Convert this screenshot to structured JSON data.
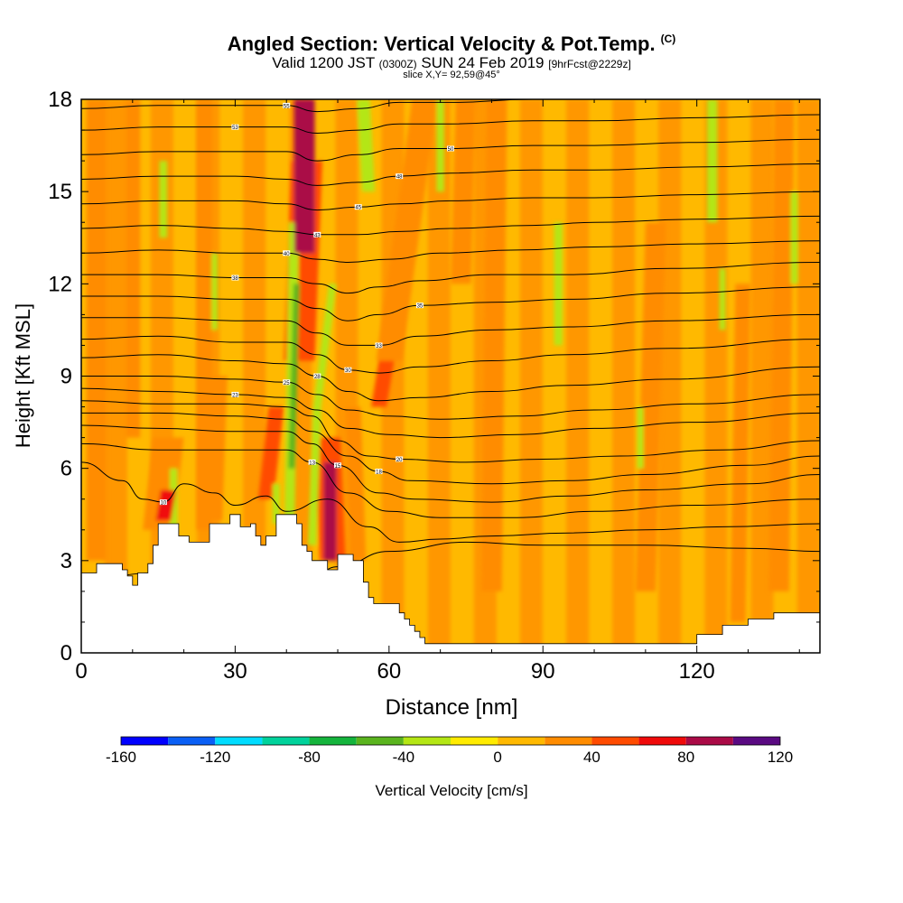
{
  "title": {
    "main": "Angled Section: Vertical Velocity & Pot.Temp.",
    "mark": "(C)",
    "valid_pre": "Valid 1200 JST",
    "valid_z": "(0300Z)",
    "valid_date": "SUN 24 Feb 2019",
    "fcst": "[9hrFcst@2229z]",
    "slice": "slice X,Y= 92,59@45°"
  },
  "colors": {
    "bins": [
      "#0000ff",
      "#0a5ff5",
      "#00dcff",
      "#00d29b",
      "#14b43c",
      "#5ab41e",
      "#b4e614",
      "#ffeb00",
      "#ffb900",
      "#ff8c00",
      "#ff4b00",
      "#f00a0a",
      "#aa0a46",
      "#5a0a82"
    ],
    "terrain": "#ffffff",
    "contour": "#000000"
  },
  "chart_data": {
    "type": "heatmap",
    "xlabel": "Distance [nm]",
    "ylabel": "Height [Kft MSL]",
    "xlim": [
      0,
      144
    ],
    "ylim": [
      0,
      18
    ],
    "xticks": [
      0,
      30,
      60,
      90,
      120
    ],
    "yticks": [
      0,
      3,
      6,
      9,
      12,
      15,
      18
    ],
    "colorbar": {
      "label": "Vertical Velocity [cm/s]",
      "levels": [
        -160,
        -140,
        -120,
        -100,
        -80,
        -60,
        -40,
        -20,
        0,
        20,
        40,
        60,
        80,
        100,
        120
      ],
      "tick_labels": [
        -160,
        -120,
        -80,
        -40,
        0,
        40,
        80,
        120
      ]
    },
    "terrain_height_kft": {
      "x": [
        0,
        3,
        5,
        8,
        9,
        10,
        11,
        12,
        13,
        14,
        15,
        16,
        17,
        19,
        21,
        23,
        25,
        27,
        29,
        31,
        33,
        34,
        35,
        36,
        38,
        40,
        42,
        43,
        44,
        45,
        46,
        47,
        48,
        49,
        50,
        52,
        53,
        55,
        56,
        57,
        58,
        60,
        62,
        63,
        64,
        65,
        66,
        67,
        68,
        70,
        72,
        75,
        80,
        85,
        100,
        110,
        115,
        120,
        125,
        130,
        135,
        144
      ],
      "h": [
        2.6,
        2.9,
        2.9,
        2.7,
        2.5,
        2.2,
        2.6,
        2.6,
        2.9,
        3.5,
        4.2,
        4.2,
        4.2,
        3.8,
        3.6,
        3.6,
        4.2,
        4.2,
        4.5,
        4.1,
        4.2,
        3.8,
        3.5,
        3.8,
        4.5,
        4.5,
        4.2,
        3.5,
        3.3,
        3.0,
        3.0,
        3.0,
        2.7,
        2.7,
        3.2,
        3.2,
        3.0,
        2.3,
        1.8,
        1.6,
        1.6,
        1.6,
        1.3,
        1.1,
        0.9,
        0.7,
        0.5,
        0.3,
        0.3,
        0.3,
        0.3,
        0.3,
        0.3,
        0.3,
        0.3,
        0.3,
        0.3,
        0.6,
        0.9,
        1.1,
        1.3,
        1.3
      ]
    },
    "theta_contours": [
      {
        "x": [
          0,
          15,
          30,
          40,
          45,
          50,
          60,
          75,
          90,
          110,
          130,
          144
        ],
        "y": [
          2.4,
          2.6,
          2.5,
          2.4,
          2.5,
          2.8,
          3.3,
          3.6,
          3.5,
          3.5,
          3.4,
          3.3
        ],
        "label": "5"
      },
      {
        "x": [
          0,
          8,
          12,
          16,
          20,
          26,
          30,
          36,
          40,
          48,
          56,
          62,
          70,
          80,
          95,
          110,
          125,
          144
        ],
        "y": [
          6.2,
          5.6,
          5.0,
          4.9,
          5.5,
          5.2,
          4.8,
          5.1,
          4.6,
          5.0,
          4.1,
          3.6,
          3.7,
          3.8,
          3.9,
          4.0,
          4.1,
          4.2
        ],
        "label": "10"
      },
      {
        "x": [
          0,
          15,
          30,
          40,
          45,
          52,
          60,
          70,
          85,
          100,
          120,
          144
        ],
        "y": [
          6.8,
          6.6,
          6.6,
          6.6,
          6.2,
          5.2,
          4.6,
          4.4,
          4.4,
          4.6,
          4.8,
          5.0
        ],
        "label": "13"
      },
      {
        "x": [
          0,
          15,
          30,
          40,
          45,
          50,
          58,
          65,
          80,
          95,
          110,
          130,
          144
        ],
        "y": [
          7.4,
          7.3,
          7.2,
          7.2,
          6.8,
          6.1,
          5.2,
          5.0,
          4.9,
          5.1,
          5.3,
          5.5,
          5.8
        ],
        "label": "15"
      },
      {
        "x": [
          0,
          15,
          30,
          40,
          45,
          52,
          58,
          64,
          80,
          95,
          110,
          130,
          144
        ],
        "y": [
          7.8,
          7.8,
          7.7,
          7.6,
          7.2,
          6.4,
          5.9,
          5.6,
          5.5,
          5.6,
          5.8,
          6.1,
          6.4
        ],
        "label": "18"
      },
      {
        "x": [
          0,
          15,
          30,
          40,
          45,
          50,
          56,
          62,
          75,
          90,
          105,
          125,
          144
        ],
        "y": [
          8.2,
          8.1,
          8.1,
          8.0,
          7.7,
          6.9,
          6.4,
          6.3,
          6.2,
          6.3,
          6.4,
          6.6,
          6.9
        ],
        "label": "20"
      },
      {
        "x": [
          0,
          15,
          30,
          40,
          46,
          52,
          60,
          70,
          85,
          100,
          120,
          144
        ],
        "y": [
          8.6,
          8.5,
          8.4,
          8.3,
          7.9,
          7.3,
          7.1,
          7.0,
          7.1,
          7.3,
          7.5,
          7.8
        ],
        "label": "23"
      },
      {
        "x": [
          0,
          15,
          30,
          40,
          46,
          52,
          60,
          70,
          85,
          100,
          120,
          144
        ],
        "y": [
          9.0,
          9.0,
          8.9,
          8.8,
          8.4,
          7.9,
          7.7,
          7.6,
          7.7,
          7.9,
          8.1,
          8.4
        ],
        "label": "25"
      },
      {
        "x": [
          0,
          15,
          30,
          40,
          46,
          52,
          58,
          66,
          80,
          95,
          115,
          144
        ],
        "y": [
          9.6,
          9.7,
          9.5,
          9.4,
          9.0,
          8.5,
          8.2,
          8.3,
          8.5,
          8.7,
          8.9,
          9.3
        ],
        "label": "28"
      },
      {
        "x": [
          0,
          15,
          30,
          40,
          46,
          52,
          58,
          66,
          80,
          95,
          115,
          144
        ],
        "y": [
          10.2,
          10.3,
          10.1,
          10.1,
          9.7,
          9.2,
          9.1,
          9.3,
          9.5,
          9.7,
          9.9,
          10.2
        ],
        "label": "30"
      },
      {
        "x": [
          0,
          15,
          30,
          40,
          46,
          52,
          58,
          66,
          80,
          95,
          115,
          144
        ],
        "y": [
          10.9,
          10.9,
          10.8,
          10.8,
          10.4,
          10.0,
          10.0,
          10.3,
          10.5,
          10.6,
          10.8,
          11.0
        ],
        "label": "33"
      },
      {
        "x": [
          0,
          15,
          30,
          40,
          46,
          52,
          58,
          66,
          80,
          95,
          115,
          144
        ],
        "y": [
          11.6,
          11.6,
          11.5,
          11.5,
          11.2,
          10.8,
          11.0,
          11.3,
          11.4,
          11.5,
          11.7,
          11.9
        ],
        "label": "35"
      },
      {
        "x": [
          0,
          15,
          30,
          40,
          46,
          52,
          58,
          66,
          80,
          95,
          115,
          144
        ],
        "y": [
          12.3,
          12.3,
          12.2,
          12.2,
          12.0,
          11.7,
          11.9,
          12.1,
          12.3,
          12.3,
          12.5,
          12.7
        ],
        "label": "38"
      },
      {
        "x": [
          0,
          15,
          30,
          40,
          46,
          52,
          60,
          70,
          85,
          100,
          120,
          144
        ],
        "y": [
          13.0,
          13.1,
          13.0,
          13.0,
          12.8,
          12.7,
          12.8,
          13.0,
          13.1,
          13.2,
          13.3,
          13.4
        ],
        "label": "40"
      },
      {
        "x": [
          0,
          15,
          30,
          40,
          46,
          54,
          62,
          72,
          88,
          100,
          120,
          144
        ],
        "y": [
          13.8,
          13.9,
          13.8,
          13.7,
          13.6,
          13.6,
          13.7,
          13.8,
          13.9,
          14.0,
          14.1,
          14.2
        ],
        "label": "43"
      },
      {
        "x": [
          0,
          15,
          30,
          40,
          46,
          54,
          62,
          72,
          88,
          100,
          120,
          144
        ],
        "y": [
          14.6,
          14.7,
          14.7,
          14.6,
          14.4,
          14.5,
          14.6,
          14.7,
          14.8,
          14.8,
          14.9,
          15.0
        ],
        "label": "45"
      },
      {
        "x": [
          0,
          15,
          30,
          40,
          46,
          54,
          62,
          72,
          88,
          100,
          120,
          144
        ],
        "y": [
          15.4,
          15.5,
          15.5,
          15.4,
          15.2,
          15.3,
          15.5,
          15.6,
          15.7,
          15.7,
          15.8,
          15.9
        ],
        "label": "48"
      },
      {
        "x": [
          0,
          15,
          30,
          40,
          46,
          54,
          62,
          72,
          88,
          100,
          120,
          144
        ],
        "y": [
          16.2,
          16.3,
          16.3,
          16.3,
          16.0,
          16.2,
          16.4,
          16.4,
          16.5,
          16.5,
          16.6,
          16.7
        ],
        "label": "50"
      },
      {
        "x": [
          0,
          15,
          30,
          40,
          46,
          54,
          62,
          72,
          88,
          100,
          120,
          144
        ],
        "y": [
          17.0,
          17.1,
          17.1,
          17.1,
          16.9,
          17.0,
          17.2,
          17.2,
          17.3,
          17.3,
          17.4,
          17.5
        ],
        "label": "53"
      },
      {
        "x": [
          0,
          15,
          30,
          40,
          46,
          54,
          62,
          72,
          88,
          100,
          120,
          144
        ],
        "y": [
          17.7,
          17.8,
          17.8,
          17.8,
          17.6,
          17.7,
          17.9,
          17.9,
          18.0,
          18.0,
          18.0,
          18.0
        ],
        "label": "55"
      }
    ],
    "velocity_features": [
      {
        "x": [
          44,
          44,
          43.5,
          42.5,
          45,
          47,
          48,
          48
        ],
        "y": [
          0,
          4,
          9,
          14,
          16.5,
          18,
          18,
          18
        ],
        "value": 70,
        "width_nm": 3.5
      },
      {
        "x": [
          0,
          0
        ],
        "y": [
          0,
          0
        ],
        "value": 0,
        "width_nm": 0
      }
    ],
    "updraft_bands": [
      {
        "xb": 43.5,
        "yb": 13,
        "xt": 43.5,
        "yt": 18,
        "w": 4,
        "v": 90
      },
      {
        "xb": 42.5,
        "yb": 9.5,
        "xt": 44,
        "yt": 16,
        "w": 6,
        "v": 50
      },
      {
        "xb": 48.5,
        "yb": 3,
        "xt": 48.5,
        "yt": 6.2,
        "w": 2.5,
        "v": 90
      },
      {
        "xb": 49,
        "yb": 3,
        "xt": 48,
        "yt": 7,
        "w": 5,
        "v": 50
      },
      {
        "xb": 54,
        "yb": 3,
        "xt": 53,
        "yt": 8,
        "w": 3,
        "v": 30
      },
      {
        "xb": 16,
        "yb": 4.3,
        "xt": 17,
        "yt": 5.3,
        "w": 3,
        "v": 70
      },
      {
        "xb": 15,
        "yb": 4,
        "xt": 17,
        "yt": 7,
        "w": 6,
        "v": 30
      },
      {
        "xb": 26,
        "yb": 4.3,
        "xt": 27,
        "yt": 9,
        "w": 3,
        "v": 30
      },
      {
        "xb": 36,
        "yb": 5,
        "xt": 38,
        "yt": 8,
        "w": 3,
        "v": 50
      },
      {
        "xb": 58,
        "yb": 8,
        "xt": 60,
        "yt": 10,
        "w": 3,
        "v": 50
      },
      {
        "xb": 60,
        "yb": 9.5,
        "xt": 67,
        "yt": 18,
        "w": 5,
        "v": 30
      },
      {
        "xb": 74,
        "yb": 12,
        "xt": 75,
        "yt": 18,
        "w": 4,
        "v": 30
      },
      {
        "xb": 80,
        "yb": 2,
        "xt": 81,
        "yt": 18,
        "w": 4,
        "v": 30
      },
      {
        "xb": 110,
        "yb": 2,
        "xt": 112,
        "yt": 14,
        "w": 4,
        "v": 30
      },
      {
        "xb": 128,
        "yb": 1,
        "xt": 129,
        "yt": 12,
        "w": 3,
        "v": 30
      },
      {
        "xb": 136,
        "yb": 2,
        "xt": 137,
        "yt": 18,
        "w": 4,
        "v": 30
      },
      {
        "xb": 3,
        "yb": 3,
        "xt": 3,
        "yt": 18,
        "w": 4,
        "v": 30
      },
      {
        "xb": 10,
        "yb": 7,
        "xt": 10,
        "yt": 18,
        "w": 3,
        "v": 30
      },
      {
        "xb": 24,
        "yb": 4,
        "xt": 24,
        "yt": 18,
        "w": 3,
        "v": 30
      }
    ],
    "downdraft_bands": [
      {
        "xb": 40.5,
        "yb": 3,
        "xt": 41.5,
        "yt": 14,
        "w": 2,
        "v": -30
      },
      {
        "xb": 41,
        "yb": 6,
        "xt": 42,
        "yt": 12,
        "w": 1.2,
        "v": -50
      },
      {
        "xb": 45,
        "yb": 3.5,
        "xt": 46,
        "yt": 8,
        "w": 1.6,
        "v": -30
      },
      {
        "xb": 56,
        "yb": 15,
        "xt": 55,
        "yt": 18,
        "w": 2.5,
        "v": -30
      },
      {
        "xb": 70,
        "yb": 15,
        "xt": 70,
        "yt": 18,
        "w": 1.5,
        "v": -30
      },
      {
        "xb": 18,
        "yb": 4,
        "xt": 18,
        "yt": 6,
        "w": 1.5,
        "v": -30
      },
      {
        "xb": 16,
        "yb": 13.5,
        "xt": 16,
        "yt": 16,
        "w": 1.5,
        "v": -30
      },
      {
        "xb": 26,
        "yb": 10.5,
        "xt": 26,
        "yt": 13,
        "w": 1.2,
        "v": -30
      },
      {
        "xb": 46,
        "yb": 8,
        "xt": 49,
        "yt": 12,
        "w": 1.5,
        "v": -30
      },
      {
        "xb": 93,
        "yb": 10,
        "xt": 93,
        "yt": 14,
        "w": 1.6,
        "v": -30
      },
      {
        "xb": 109,
        "yb": 6,
        "xt": 109,
        "yt": 8,
        "w": 1.2,
        "v": -30
      },
      {
        "xb": 123,
        "yb": 14,
        "xt": 123,
        "yt": 18,
        "w": 2,
        "v": -30
      },
      {
        "xb": 125,
        "yb": 10.5,
        "xt": 125,
        "yt": 12.5,
        "w": 1.2,
        "v": -30
      },
      {
        "xb": 139,
        "yb": 12,
        "xt": 139,
        "yt": 15,
        "w": 1.4,
        "v": -30
      },
      {
        "xb": 38,
        "yb": 4.2,
        "xt": 38,
        "yt": 5.5,
        "w": 1.4,
        "v": -30
      }
    ]
  }
}
